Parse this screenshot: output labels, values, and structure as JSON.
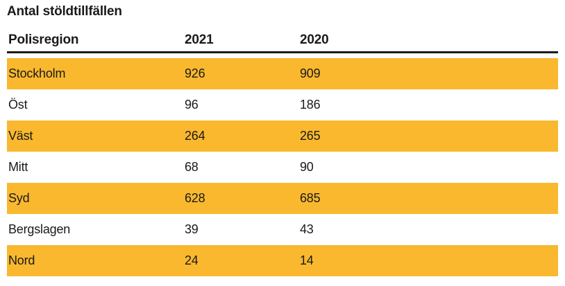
{
  "page": {
    "title": "Antal stöldtillfällen"
  },
  "colors": {
    "highlight": "#f9b82e",
    "text": "#1a1a1a"
  },
  "table": {
    "columns": [
      "Polisregion",
      "2021",
      "2020"
    ],
    "rows": [
      {
        "region": "Stockholm",
        "y2021": "926",
        "y2020": "909"
      },
      {
        "region": "Öst",
        "y2021": "96",
        "y2020": "186"
      },
      {
        "region": "Väst",
        "y2021": "264",
        "y2020": "265"
      },
      {
        "region": "Mitt",
        "y2021": "68",
        "y2020": "90"
      },
      {
        "region": "Syd",
        "y2021": "628",
        "y2020": "685"
      },
      {
        "region": "Bergslagen",
        "y2021": "39",
        "y2020": "43"
      },
      {
        "region": "Nord",
        "y2021": "24",
        "y2020": "14"
      }
    ]
  },
  "chart_data": {
    "type": "table",
    "title": "Antal stöldtillfällen",
    "columns": [
      "Polisregion",
      "2021",
      "2020"
    ],
    "rows": [
      [
        "Stockholm",
        926,
        909
      ],
      [
        "Öst",
        96,
        186
      ],
      [
        "Väst",
        264,
        265
      ],
      [
        "Mitt",
        68,
        90
      ],
      [
        "Syd",
        628,
        685
      ],
      [
        "Bergslagen",
        39,
        43
      ],
      [
        "Nord",
        24,
        14
      ]
    ],
    "layout_hints": {
      "highlighted_rows": [
        "Stockholm",
        "Väst",
        "Syd",
        "Nord"
      ],
      "highlight_color": "#f9b82e",
      "header_rule": "3px solid black"
    }
  }
}
